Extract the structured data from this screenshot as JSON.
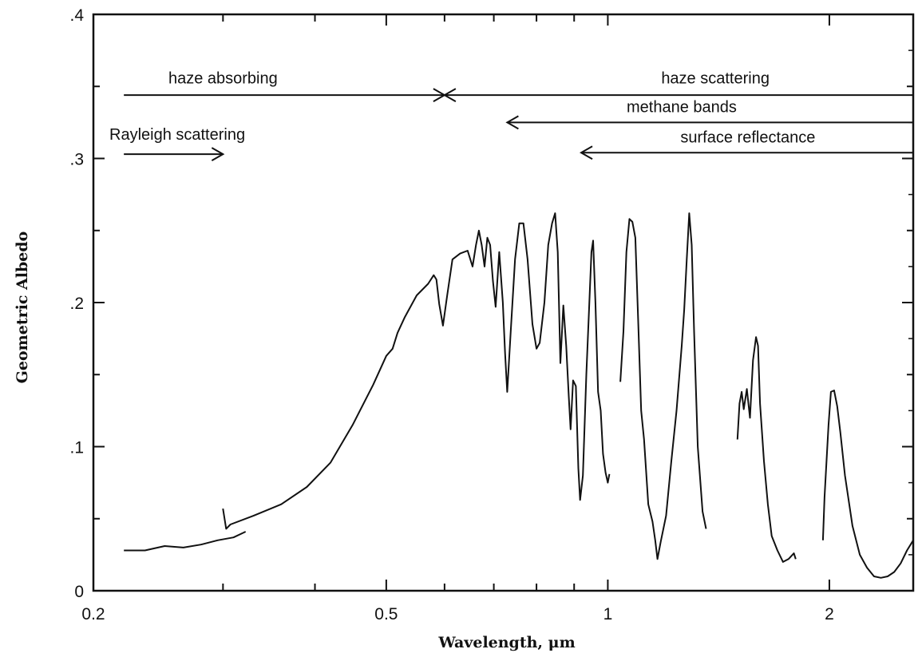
{
  "chart_data": {
    "type": "line",
    "title": "",
    "xlabel": "Wavelength, μm",
    "ylabel": "Geometric Albedo",
    "xscale": "log",
    "xlim": [
      0.2,
      2.6
    ],
    "ylim": [
      0,
      0.4
    ],
    "x_ticks": [
      {
        "value": 0.2,
        "label": "0.2"
      },
      {
        "value": 0.5,
        "label": "0.5"
      },
      {
        "value": 1,
        "label": "1"
      },
      {
        "value": 2,
        "label": "2"
      }
    ],
    "y_ticks": [
      {
        "value": 0,
        "label": "0"
      },
      {
        "value": 0.1,
        "label": ".1"
      },
      {
        "value": 0.2,
        "label": ".2"
      },
      {
        "value": 0.3,
        "label": ".3"
      },
      {
        "value": 0.4,
        "label": ".4"
      }
    ],
    "grid": false,
    "annotations": [
      {
        "text": "haze absorbing",
        "from": 0.22,
        "to": 0.6,
        "y": 0.344,
        "arrow": "end",
        "text_x": 0.3,
        "text_y": 0.352
      },
      {
        "text": "haze scattering",
        "from": 2.6,
        "to": 0.6,
        "y": 0.344,
        "arrow": "end",
        "text_x": 1.4,
        "text_y": 0.352
      },
      {
        "text": "methane bands",
        "from": 2.6,
        "to": 0.73,
        "y": 0.325,
        "arrow": "end",
        "text_x": 1.26,
        "text_y": 0.332
      },
      {
        "text": "surface reflectance",
        "from": 2.6,
        "to": 0.92,
        "y": 0.304,
        "arrow": "end",
        "text_x": 1.55,
        "text_y": 0.311
      },
      {
        "text": "Rayleigh scattering",
        "from": 0.22,
        "to": 0.3,
        "y": 0.303,
        "arrow": "end",
        "text_x": 0.26,
        "text_y": 0.313
      }
    ],
    "series": [
      {
        "values": [
          [
            0.22,
            0.028
          ],
          [
            0.235,
            0.028
          ],
          [
            0.25,
            0.031
          ],
          [
            0.265,
            0.03
          ],
          [
            0.28,
            0.032
          ],
          [
            0.295,
            0.035
          ],
          [
            0.31,
            0.037
          ],
          [
            0.322,
            0.041
          ]
        ]
      },
      {
        "values": [
          [
            0.3,
            0.057
          ],
          [
            0.303,
            0.043
          ],
          [
            0.307,
            0.046
          ],
          [
            0.33,
            0.052
          ],
          [
            0.36,
            0.06
          ],
          [
            0.39,
            0.072
          ],
          [
            0.42,
            0.089
          ],
          [
            0.45,
            0.115
          ],
          [
            0.48,
            0.143
          ],
          [
            0.5,
            0.163
          ],
          [
            0.51,
            0.168
          ],
          [
            0.518,
            0.179
          ],
          [
            0.53,
            0.19
          ],
          [
            0.55,
            0.205
          ],
          [
            0.57,
            0.213
          ],
          [
            0.58,
            0.219
          ],
          [
            0.585,
            0.216
          ],
          [
            0.59,
            0.199
          ],
          [
            0.597,
            0.184
          ],
          [
            0.605,
            0.205
          ],
          [
            0.615,
            0.23
          ],
          [
            0.63,
            0.234
          ],
          [
            0.645,
            0.236
          ],
          [
            0.655,
            0.225
          ],
          [
            0.662,
            0.24
          ],
          [
            0.668,
            0.25
          ],
          [
            0.674,
            0.24
          ],
          [
            0.68,
            0.225
          ],
          [
            0.686,
            0.245
          ],
          [
            0.692,
            0.24
          ],
          [
            0.698,
            0.215
          ],
          [
            0.704,
            0.197
          ],
          [
            0.712,
            0.235
          ],
          [
            0.72,
            0.2
          ],
          [
            0.725,
            0.165
          ],
          [
            0.73,
            0.138
          ],
          [
            0.738,
            0.18
          ],
          [
            0.748,
            0.23
          ],
          [
            0.758,
            0.255
          ],
          [
            0.768,
            0.255
          ],
          [
            0.778,
            0.23
          ],
          [
            0.79,
            0.185
          ],
          [
            0.8,
            0.168
          ],
          [
            0.808,
            0.172
          ],
          [
            0.82,
            0.2
          ],
          [
            0.83,
            0.24
          ],
          [
            0.84,
            0.255
          ],
          [
            0.848,
            0.262
          ],
          [
            0.855,
            0.235
          ],
          [
            0.862,
            0.158
          ],
          [
            0.87,
            0.198
          ],
          [
            0.878,
            0.17
          ],
          [
            0.885,
            0.135
          ],
          [
            0.89,
            0.112
          ],
          [
            0.897,
            0.146
          ],
          [
            0.905,
            0.142
          ],
          [
            0.912,
            0.085
          ],
          [
            0.917,
            0.063
          ],
          [
            0.925,
            0.08
          ],
          [
            0.935,
            0.15
          ],
          [
            0.943,
            0.195
          ],
          [
            0.95,
            0.235
          ],
          [
            0.955,
            0.243
          ],
          [
            0.962,
            0.2
          ],
          [
            0.97,
            0.138
          ],
          [
            0.978,
            0.125
          ],
          [
            0.985,
            0.095
          ],
          [
            0.993,
            0.082
          ],
          [
            1.0,
            0.075
          ],
          [
            1.005,
            0.081
          ]
        ]
      },
      {
        "values": [
          [
            1.04,
            0.145
          ],
          [
            1.05,
            0.18
          ],
          [
            1.06,
            0.235
          ],
          [
            1.07,
            0.258
          ],
          [
            1.08,
            0.256
          ],
          [
            1.09,
            0.245
          ],
          [
            1.1,
            0.185
          ],
          [
            1.11,
            0.125
          ],
          [
            1.12,
            0.105
          ],
          [
            1.135,
            0.06
          ],
          [
            1.15,
            0.048
          ],
          [
            1.16,
            0.035
          ],
          [
            1.168,
            0.022
          ],
          [
            1.18,
            0.034
          ],
          [
            1.2,
            0.052
          ],
          [
            1.22,
            0.09
          ],
          [
            1.24,
            0.125
          ],
          [
            1.26,
            0.17
          ],
          [
            1.27,
            0.195
          ],
          [
            1.28,
            0.23
          ],
          [
            1.29,
            0.262
          ],
          [
            1.3,
            0.24
          ],
          [
            1.31,
            0.18
          ],
          [
            1.325,
            0.1
          ],
          [
            1.345,
            0.055
          ],
          [
            1.36,
            0.043
          ]
        ]
      },
      {
        "values": [
          [
            1.5,
            0.105
          ],
          [
            1.51,
            0.13
          ],
          [
            1.52,
            0.138
          ],
          [
            1.53,
            0.126
          ],
          [
            1.545,
            0.14
          ],
          [
            1.56,
            0.12
          ],
          [
            1.575,
            0.16
          ],
          [
            1.59,
            0.176
          ],
          [
            1.6,
            0.17
          ],
          [
            1.61,
            0.13
          ],
          [
            1.63,
            0.09
          ],
          [
            1.65,
            0.06
          ],
          [
            1.67,
            0.038
          ],
          [
            1.7,
            0.028
          ],
          [
            1.73,
            0.02
          ],
          [
            1.76,
            0.022
          ],
          [
            1.79,
            0.026
          ],
          [
            1.8,
            0.022
          ]
        ]
      },
      {
        "values": [
          [
            1.96,
            0.035
          ],
          [
            1.97,
            0.065
          ],
          [
            1.98,
            0.085
          ],
          [
            1.995,
            0.115
          ],
          [
            2.01,
            0.138
          ],
          [
            2.03,
            0.139
          ],
          [
            2.05,
            0.128
          ],
          [
            2.07,
            0.11
          ],
          [
            2.1,
            0.08
          ],
          [
            2.15,
            0.045
          ],
          [
            2.2,
            0.025
          ],
          [
            2.25,
            0.016
          ],
          [
            2.3,
            0.01
          ],
          [
            2.35,
            0.009
          ],
          [
            2.4,
            0.01
          ],
          [
            2.45,
            0.013
          ],
          [
            2.5,
            0.019
          ],
          [
            2.55,
            0.028
          ],
          [
            2.6,
            0.035
          ]
        ]
      }
    ]
  }
}
